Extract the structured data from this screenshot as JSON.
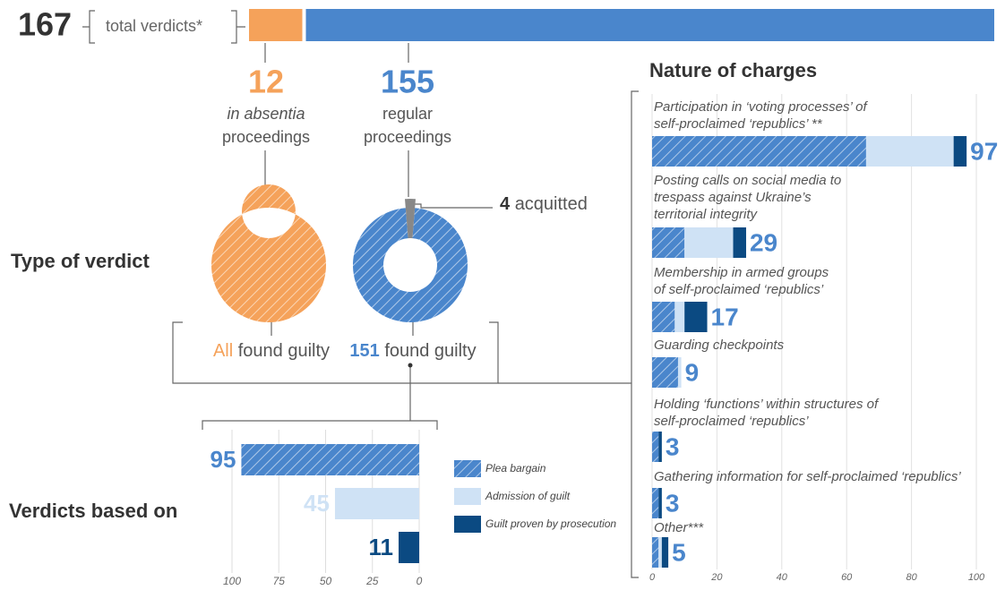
{
  "chart_data": [
    {
      "type": "total-bar",
      "total": 167,
      "total_label": "total verdicts*",
      "values": [
        12,
        155
      ],
      "colors": [
        "#f5a25a",
        "#4a86cc"
      ],
      "category_notes": [
        "in absentia",
        "regular"
      ],
      "category_labels": [
        "proceedings",
        "proceedings"
      ]
    },
    {
      "type": "pie",
      "title": "Type of verdict",
      "categories": [
        "found guilty"
      ],
      "values": [
        12
      ],
      "value_labels": [
        "All"
      ],
      "colors": [
        "#f5a25a"
      ]
    },
    {
      "type": "pie",
      "categories": [
        "found guilty",
        "acquitted"
      ],
      "values": [
        151,
        4
      ],
      "colors": [
        "#4a86cc",
        "#888888"
      ]
    },
    {
      "type": "hbar",
      "title": "Verdicts based on",
      "values": [
        95,
        45,
        11
      ],
      "colors": [
        "#4a86cc",
        "#cfe2f5",
        "#0b4a82"
      ],
      "hatched": [
        true,
        false,
        false
      ],
      "legend": [
        "Plea bargain",
        "Admission of guilt",
        "Guilt proven by prosecution"
      ],
      "xlim": [
        100,
        0
      ],
      "xticks": [
        100,
        75,
        50,
        25,
        0
      ],
      "grid": true
    },
    {
      "type": "stacked-hbar",
      "title": "Nature of charges",
      "categories": [
        [
          "Participation in ‘voting processes’ of",
          "self-proclaimed ‘republics’ **"
        ],
        [
          "Posting calls on social media to",
          "trespass against Ukraine’s",
          "territorial integrity"
        ],
        [
          "Membership in armed groups",
          "of self-proclaimed ‘republics’"
        ],
        [
          "Guarding checkpoints"
        ],
        [
          "Holding ‘functions’ within structures of",
          "self-proclaimed ‘republics’"
        ],
        [
          "Gathering information for self-proclaimed ‘republics’"
        ],
        [
          "Other***"
        ]
      ],
      "series": [
        {
          "name": "Plea bargain",
          "color": "#4a86cc",
          "hatched": true,
          "values": [
            66,
            10,
            7,
            8,
            2,
            2,
            2
          ]
        },
        {
          "name": "Admission of guilt",
          "color": "#cfe2f5",
          "hatched": false,
          "values": [
            27,
            15,
            3,
            1,
            0,
            0,
            1
          ]
        },
        {
          "name": "Guilt proven by prosecution",
          "color": "#0b4a82",
          "hatched": false,
          "values": [
            4,
            4,
            7,
            0,
            1,
            1,
            2
          ]
        }
      ],
      "totals": [
        97,
        29,
        17,
        9,
        3,
        3,
        5
      ],
      "xlim": [
        0,
        106
      ],
      "xticks": [
        0,
        20,
        40,
        60,
        80,
        100
      ],
      "grid": true
    }
  ]
}
